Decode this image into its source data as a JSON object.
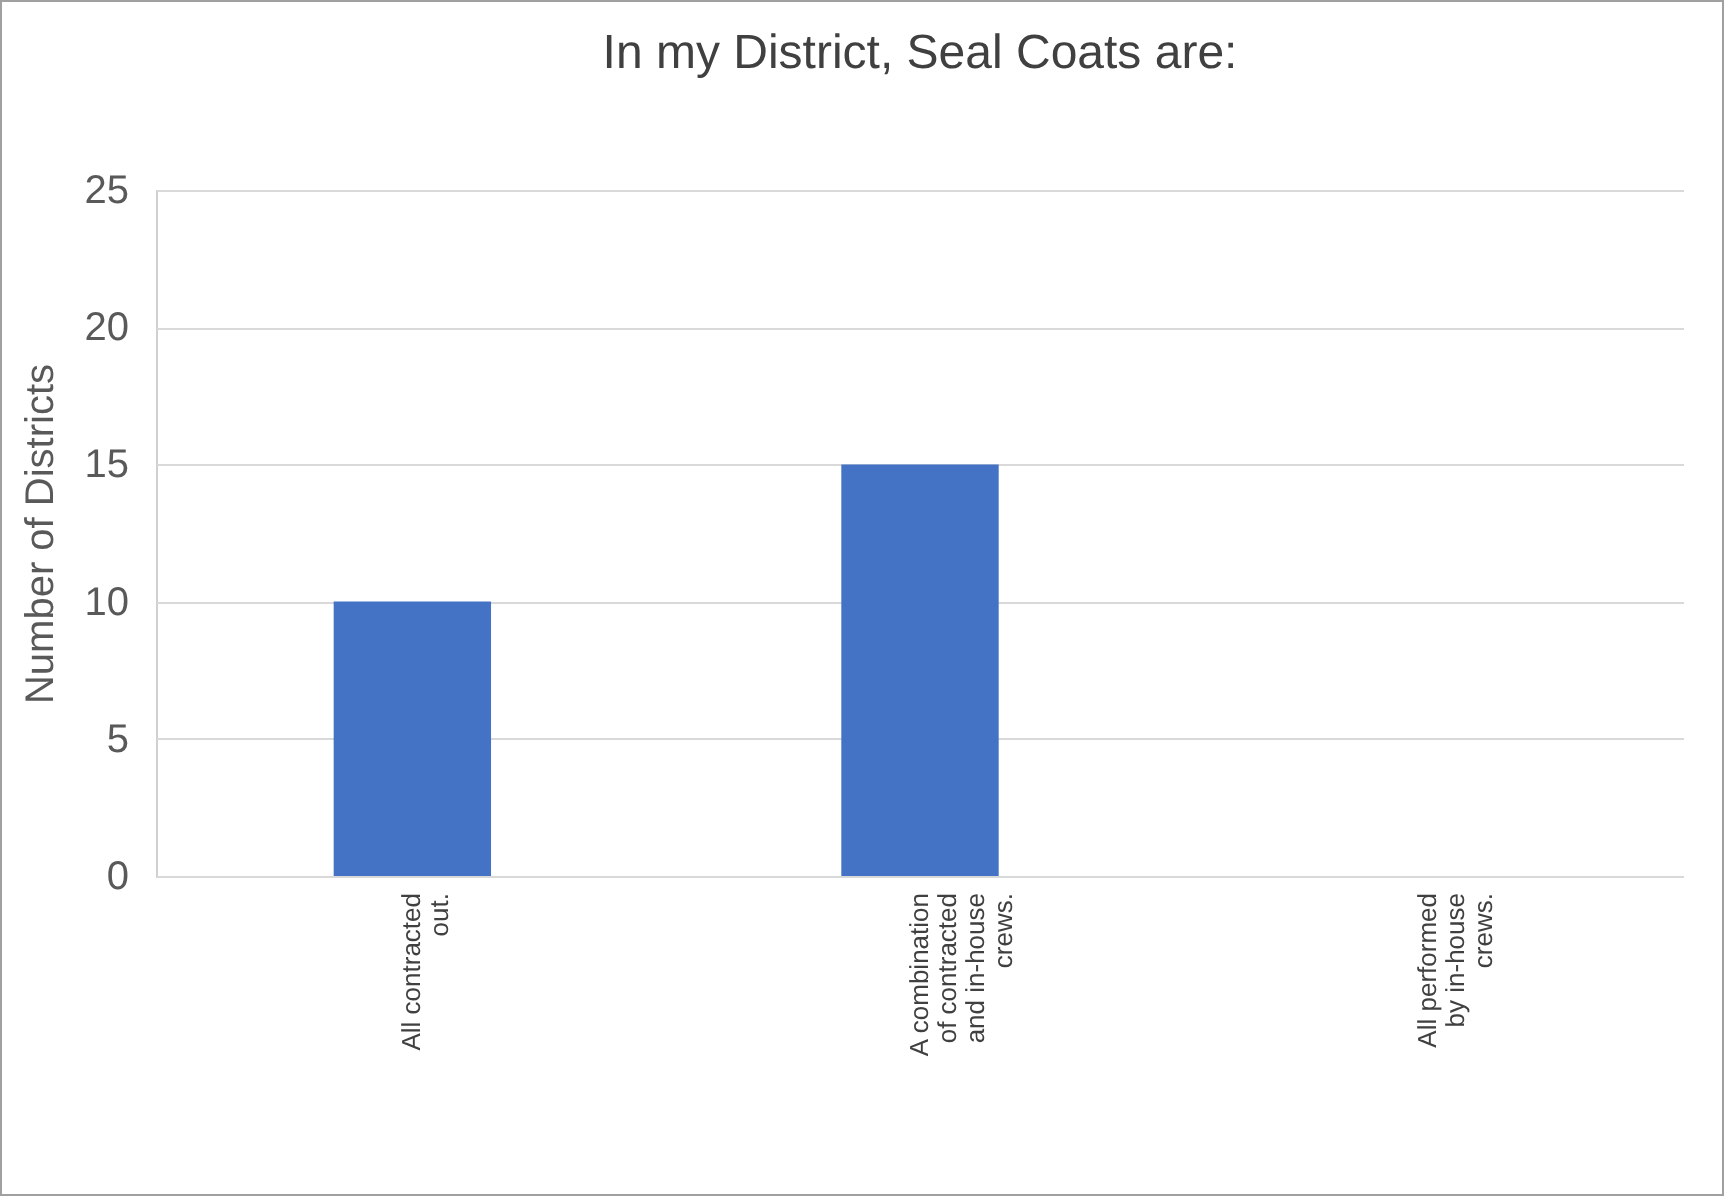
{
  "chart_data": {
    "type": "bar",
    "title": "In my District, Seal Coats are:",
    "ylabel": "Number of Districts",
    "categories": [
      "All contracted out.",
      "A combination of contracted and in-house crews.",
      "All performed by in-house crews."
    ],
    "values": [
      10,
      15,
      0
    ],
    "color": "#4472c4",
    "ylim": [
      0,
      25
    ],
    "yticks": [
      0,
      5,
      10,
      15,
      20,
      25
    ],
    "grid": "y"
  }
}
